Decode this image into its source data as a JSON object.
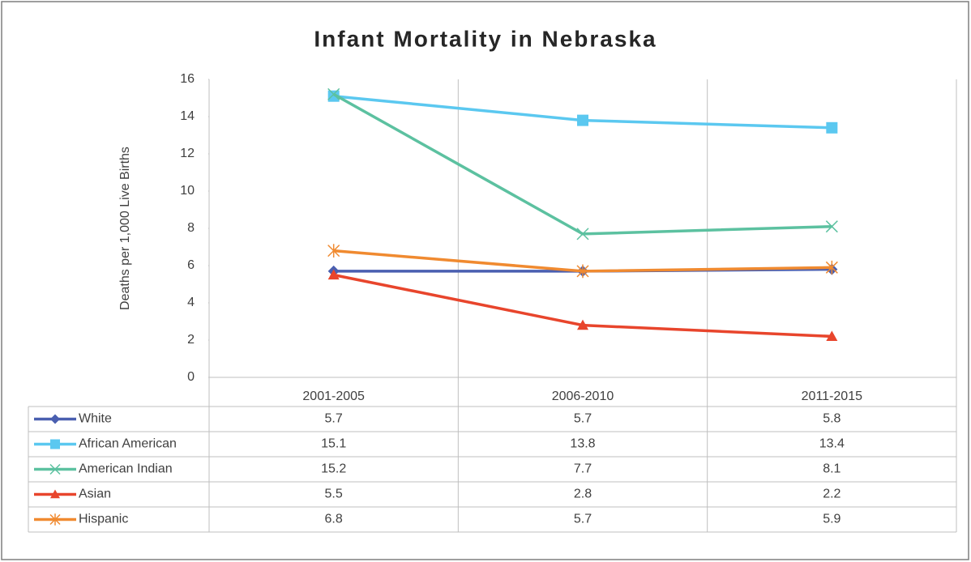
{
  "chart_data": {
    "type": "line",
    "title": "Infant Mortality in Nebraska",
    "y_label": "Deaths per 1,000 Live Births",
    "categories": [
      "2001-2005",
      "2006-2010",
      "2011-2015"
    ],
    "ylim": [
      0,
      16
    ],
    "yticks": [
      0,
      2,
      4,
      6,
      8,
      10,
      12,
      14,
      16
    ],
    "series": [
      {
        "name": "White",
        "color": "#4a5fb0",
        "marker": "diamond",
        "values": [
          5.7,
          5.7,
          5.8
        ]
      },
      {
        "name": "African American",
        "color": "#5bc8f0",
        "marker": "square",
        "values": [
          15.1,
          13.8,
          13.4
        ]
      },
      {
        "name": "American Indian",
        "color": "#5cc1a0",
        "marker": "x",
        "values": [
          15.2,
          7.7,
          8.1
        ]
      },
      {
        "name": "Asian",
        "color": "#e8452c",
        "marker": "triangle",
        "values": [
          5.5,
          2.8,
          2.2
        ]
      },
      {
        "name": "Hispanic",
        "color": "#f08a30",
        "marker": "asterisk",
        "values": [
          6.8,
          5.7,
          5.9
        ]
      }
    ]
  }
}
